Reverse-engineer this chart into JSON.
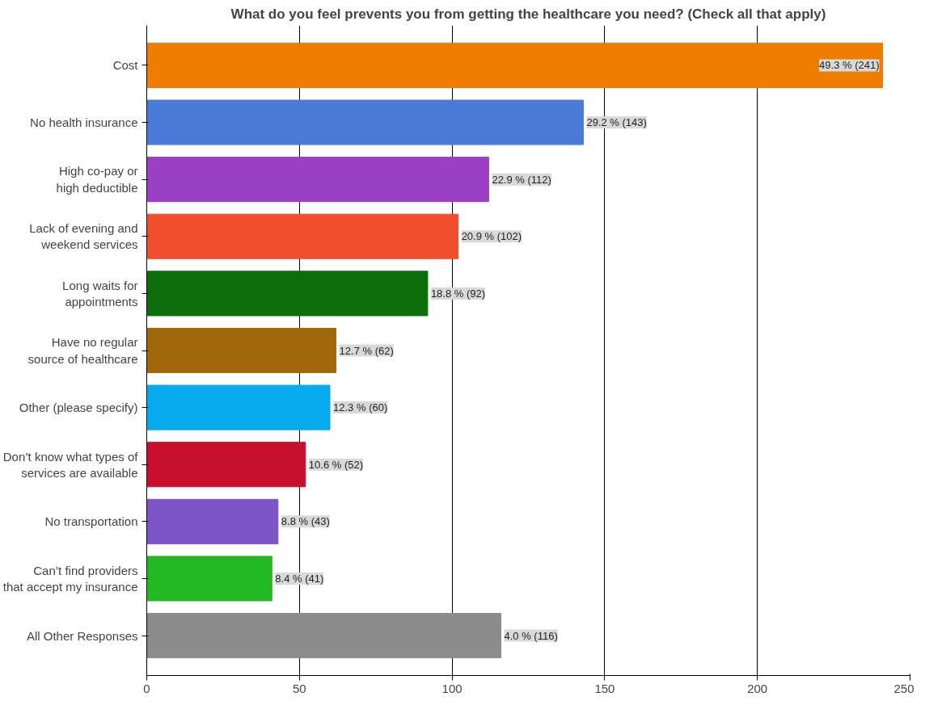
{
  "chart_data": {
    "type": "bar",
    "orientation": "horizontal",
    "title": "What do you feel prevents you from getting the healthcare you need? (Check all that apply)",
    "categories": [
      "Cost",
      "No health insurance",
      "High co-pay or\nhigh deductible",
      "Lack of evening and\nweekend services",
      "Long waits for\nappointments",
      "Have no regular\nsource of healthcare",
      "Other (please specify)",
      "Don’t know what types of\nservices are available",
      "No transportation",
      "Can’t find providers\nthat accept my insurance",
      "All Other Responses"
    ],
    "values": [
      241,
      143,
      112,
      102,
      92,
      62,
      60,
      52,
      43,
      41,
      116
    ],
    "colors": [
      "#f07c00",
      "#4a7bd8",
      "#9b3fc4",
      "#f04e2c",
      "#0b6e0b",
      "#a0680a",
      "#08aaf0",
      "#c8102e",
      "#7b55c8",
      "#22b822",
      "#8c8c8c"
    ],
    "value_labels": [
      "49.3 % (241)",
      "29.2 % (143)",
      "22.9 % (112)",
      "20.9 % (102)",
      "18.8 % (92)",
      "12.7 % (62)",
      "12.3 % (60)",
      "10.6 % (52)",
      "8.8 % (43)",
      "8.4 % (41)",
      "4.0 % (116)"
    ],
    "xlim": [
      0,
      250
    ],
    "xticks": [
      0,
      50,
      100,
      150,
      200,
      250
    ],
    "grid": "x"
  }
}
